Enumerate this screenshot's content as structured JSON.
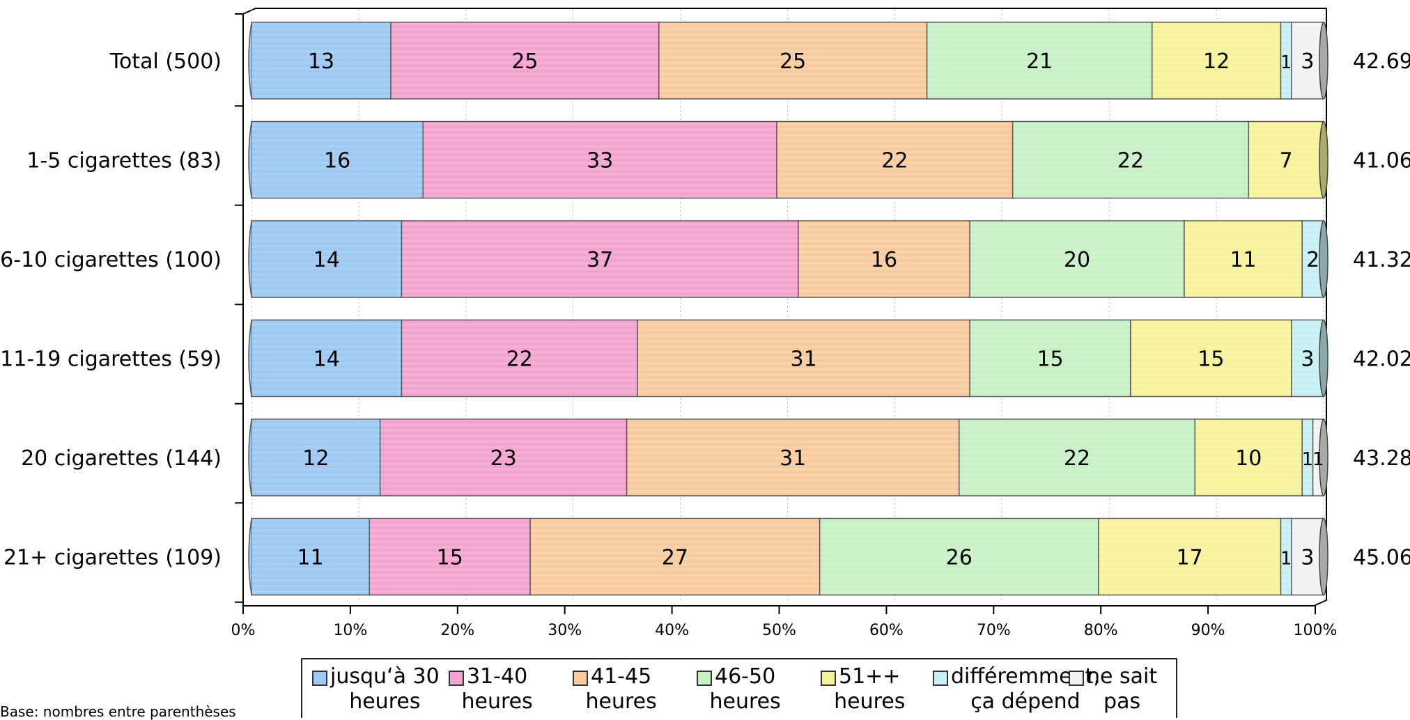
{
  "chart_data": {
    "type": "bar",
    "orientation": "horizontal",
    "stacked": true,
    "percent": true,
    "categories": [
      "Total (500)",
      "1-5 cigarettes (83)",
      "6-10 cigarettes (100)",
      "11-19 cigarettes (59)",
      "20 cigarettes (144)",
      "21+ cigarettes (109)"
    ],
    "series": [
      {
        "name": "jusqu‘à 30 heures",
        "line1": "jusqu‘à 30",
        "line2": "heures",
        "color": "#9dc9f2",
        "values": [
          13,
          16,
          14,
          14,
          12,
          11
        ],
        "labels": [
          "13",
          "16",
          "14",
          "14",
          "12",
          "11"
        ]
      },
      {
        "name": "31-40 heures",
        "line1": "31-40",
        "line2": "heures",
        "color": "#f4a3cf",
        "values": [
          25,
          33,
          37,
          22,
          23,
          15
        ],
        "labels": [
          "25",
          "33",
          "37",
          "22",
          "23",
          "15"
        ]
      },
      {
        "name": "41-45 heures",
        "line1": "41-45",
        "line2": "heures",
        "color": "#f8cc9f",
        "values": [
          25,
          22,
          16,
          31,
          31,
          27
        ],
        "labels": [
          "25",
          "22",
          "16",
          "31",
          "31",
          "27"
        ]
      },
      {
        "name": "46-50 heures",
        "line1": "46-50",
        "line2": "heures",
        "color": "#c8f0c6",
        "values": [
          21,
          22,
          20,
          15,
          22,
          26
        ],
        "labels": [
          "21",
          "22",
          "20",
          "15",
          "22",
          "26"
        ]
      },
      {
        "name": "51++ heures",
        "line1": "51++",
        "line2": "heures",
        "color": "#f6f39c",
        "values": [
          12,
          7,
          11,
          15,
          10,
          17
        ],
        "labels": [
          "12",
          "7",
          "11",
          "15",
          "10",
          "17"
        ]
      },
      {
        "name": "différemment, ça dépend",
        "line1": "différemment,",
        "line2": "ça dépend",
        "color": "#c6f0f4",
        "values": [
          1,
          0,
          2,
          3,
          1,
          1
        ],
        "labels": [
          "1",
          "",
          "2",
          "3",
          "1",
          "1"
        ]
      },
      {
        "name": "ne sait pas",
        "line1": "ne sait",
        "line2": "pas",
        "color": "#f2f2f2",
        "values": [
          3,
          0,
          0,
          0,
          1,
          3
        ],
        "labels": [
          "3",
          "",
          "",
          "",
          "1",
          "3"
        ]
      }
    ],
    "row_totals": [
      "42.69",
      "41.06",
      "41.32",
      "42.02",
      "43.28",
      "45.06"
    ],
    "x_ticks": [
      "0%",
      "10%",
      "20%",
      "30%",
      "40%",
      "50%",
      "60%",
      "70%",
      "80%",
      "90%",
      "100%"
    ],
    "xlim": [
      0,
      100
    ],
    "grid": true,
    "legend_position": "bottom"
  },
  "footnote": "Base: nombres entre parenthèses"
}
